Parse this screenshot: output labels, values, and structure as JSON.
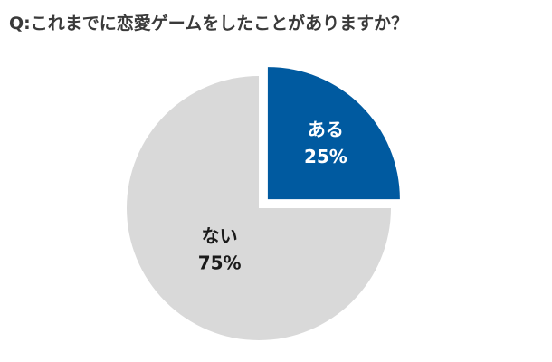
{
  "question": "Q:これまでに恋愛ゲームをしたことがありますか？",
  "chart_data": {
    "type": "pie",
    "title": "Q:これまでに恋愛ゲームをしたことがありますか？",
    "slices": [
      {
        "label": "ある",
        "value": 25,
        "value_label": "25%",
        "color": "#005aa0",
        "text_color": "#ffffff",
        "exploded": true
      },
      {
        "label": "ない",
        "value": 75,
        "value_label": "75%",
        "color": "#d9d9d9",
        "text_color": "#1a1a1a",
        "exploded": false
      }
    ],
    "start": "12 o'clock",
    "direction": "clockwise",
    "legend": "none"
  }
}
